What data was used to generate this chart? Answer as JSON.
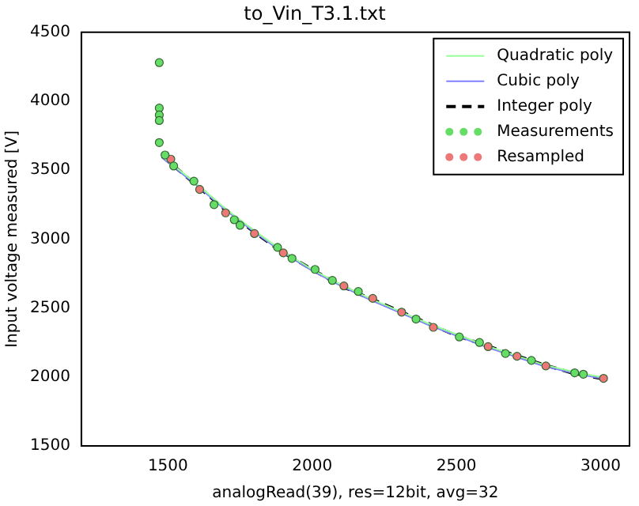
{
  "chart_data": {
    "type": "line",
    "title": "to_Vin_T3.1.txt",
    "xlabel": "analogRead(39), res=12bit, avg=32",
    "ylabel": "Input voltage measured [V]",
    "xlim": [
      1200,
      3100
    ],
    "xticks": [
      1500,
      2000,
      2500,
      3000
    ],
    "ylim": [
      1500,
      4500
    ],
    "yticks": [
      1500,
      2000,
      2500,
      3000,
      3500,
      4000,
      4500
    ],
    "grid": false,
    "legend": "top right",
    "series": [
      {
        "name": "Quadratic poly",
        "color": "#99ff99",
        "line_style": "solid",
        "marker": "none",
        "x": [
          1480,
          1600,
          1700,
          1800,
          1900,
          2000,
          2100,
          2200,
          2300,
          2400,
          2500,
          2600,
          2700,
          2800,
          2900,
          3000
        ],
        "values": [
          3600,
          3400,
          3220,
          3060,
          2910,
          2780,
          2670,
          2570,
          2480,
          2390,
          2310,
          2230,
          2160,
          2090,
          2040,
          2000
        ]
      },
      {
        "name": "Cubic poly",
        "color": "#8080ff",
        "line_style": "solid",
        "marker": "none",
        "x": [
          1480,
          1600,
          1700,
          1800,
          1900,
          2000,
          2100,
          2200,
          2300,
          2400,
          2500,
          2600,
          2700,
          2800,
          2900,
          3000
        ],
        "values": [
          3590,
          3390,
          3210,
          3050,
          2900,
          2770,
          2660,
          2560,
          2470,
          2380,
          2300,
          2220,
          2150,
          2080,
          2030,
          1990
        ]
      },
      {
        "name": "Integer poly",
        "color": "#000000",
        "line_style": "dashed",
        "marker": "none",
        "x": [
          1480,
          1600,
          1700,
          1800,
          1900,
          2000,
          2100,
          2200,
          2300,
          2400,
          2500,
          2600,
          2700,
          2800,
          2900,
          3000
        ],
        "values": [
          3600,
          3390,
          3210,
          3050,
          2900,
          2780,
          2660,
          2570,
          2480,
          2390,
          2300,
          2230,
          2160,
          2090,
          2030,
          1990
        ]
      },
      {
        "name": "Measurements",
        "type": "scatter",
        "color": "#66dd66",
        "marker": "circle",
        "x": [
          1470,
          1470,
          1470,
          1470,
          1470,
          1490,
          1520,
          1590,
          1660,
          1730,
          1750,
          1880,
          1930,
          2010,
          2070,
          2160,
          2360,
          2510,
          2580,
          2670,
          2760,
          2910,
          2940
        ],
        "values": [
          4280,
          3950,
          3900,
          3860,
          3700,
          3610,
          3530,
          3420,
          3250,
          3140,
          3100,
          2940,
          2860,
          2780,
          2700,
          2620,
          2420,
          2290,
          2250,
          2170,
          2120,
          2030,
          2020
        ]
      },
      {
        "name": "Resampled",
        "type": "scatter",
        "color": "#ee7777",
        "marker": "circle",
        "x": [
          1510,
          1610,
          1700,
          1800,
          1900,
          2110,
          2210,
          2310,
          2420,
          2610,
          2710,
          2810,
          3010
        ],
        "values": [
          3580,
          3360,
          3190,
          3040,
          2900,
          2660,
          2570,
          2470,
          2360,
          2220,
          2150,
          2080,
          1990
        ]
      }
    ]
  }
}
